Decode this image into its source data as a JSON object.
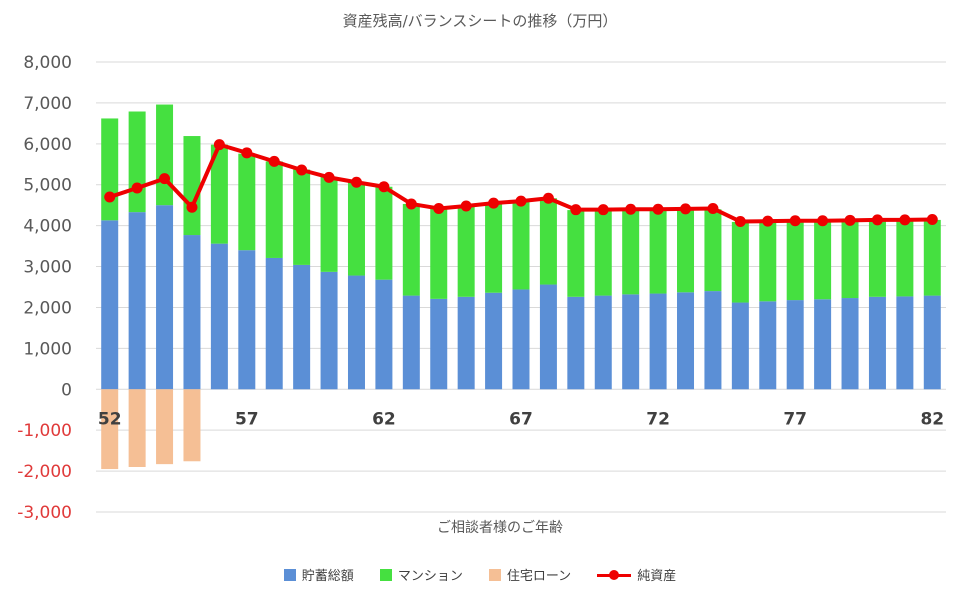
{
  "colors": {
    "savings": "#5b8fd6",
    "mansion": "#45e040",
    "loan": "#f5bf95",
    "net": "#ee0000",
    "grid": "#d9d9d9",
    "tick": "#595959",
    "tick_negative": "#e03a3a",
    "xtick": "#404040"
  },
  "chart_data": {
    "type": "bar",
    "title": "資産残高/バランスシートの推移（万円）",
    "xlabel": "ご相談者様のご年齢",
    "ylabel": "",
    "ylim": [
      -3000,
      8000
    ],
    "yticks": [
      "8,000",
      "7,000",
      "6,000",
      "5,000",
      "4,000",
      "3,000",
      "2,000",
      "1,000",
      "0",
      "-1,000",
      "-2,000",
      "-3,000"
    ],
    "ytick_values": [
      8000,
      7000,
      6000,
      5000,
      4000,
      3000,
      2000,
      1000,
      0,
      -1000,
      -2000,
      -3000
    ],
    "x": [
      52,
      53,
      54,
      55,
      56,
      57,
      58,
      59,
      60,
      61,
      62,
      63,
      64,
      65,
      66,
      67,
      68,
      69,
      70,
      71,
      72,
      73,
      74,
      75,
      76,
      77,
      78,
      79,
      80,
      81,
      82
    ],
    "xtick_labels": [
      "52",
      "57",
      "62",
      "67",
      "72",
      "77",
      "82"
    ],
    "xtick_values": [
      52,
      57,
      62,
      67,
      72,
      77,
      82
    ],
    "stacked": true,
    "grid": true,
    "legend_position": "bottom",
    "series": [
      {
        "name": "貯蓄総額",
        "type": "bar",
        "values": [
          4130,
          4330,
          4500,
          3770,
          3560,
          3400,
          3210,
          3040,
          2870,
          2780,
          2680,
          2290,
          2210,
          2260,
          2360,
          2440,
          2560,
          2260,
          2290,
          2320,
          2340,
          2370,
          2400,
          2120,
          2150,
          2180,
          2200,
          2230,
          2260,
          2270,
          2290
        ]
      },
      {
        "name": "マンション",
        "type": "bar",
        "values": [
          2490,
          2460,
          2460,
          2420,
          2420,
          2360,
          2360,
          2330,
          2320,
          2290,
          2270,
          2240,
          2210,
          2210,
          2190,
          2170,
          2110,
          2120,
          2100,
          2080,
          2060,
          2040,
          2000,
          1970,
          1960,
          1930,
          1920,
          1900,
          1880,
          1870,
          1850
        ]
      },
      {
        "name": "住宅ローン",
        "type": "bar",
        "values": [
          -1950,
          -1900,
          -1830,
          -1760,
          0,
          0,
          0,
          0,
          0,
          0,
          0,
          0,
          0,
          0,
          0,
          0,
          0,
          0,
          0,
          0,
          0,
          0,
          0,
          0,
          0,
          0,
          0,
          0,
          0,
          0,
          0
        ]
      },
      {
        "name": "純資産",
        "type": "line",
        "values": [
          4700,
          4920,
          5150,
          4450,
          5980,
          5780,
          5570,
          5360,
          5180,
          5060,
          4950,
          4530,
          4420,
          4480,
          4550,
          4600,
          4670,
          4390,
          4390,
          4400,
          4400,
          4410,
          4420,
          4100,
          4110,
          4120,
          4120,
          4130,
          4140,
          4140,
          4150
        ]
      }
    ]
  }
}
